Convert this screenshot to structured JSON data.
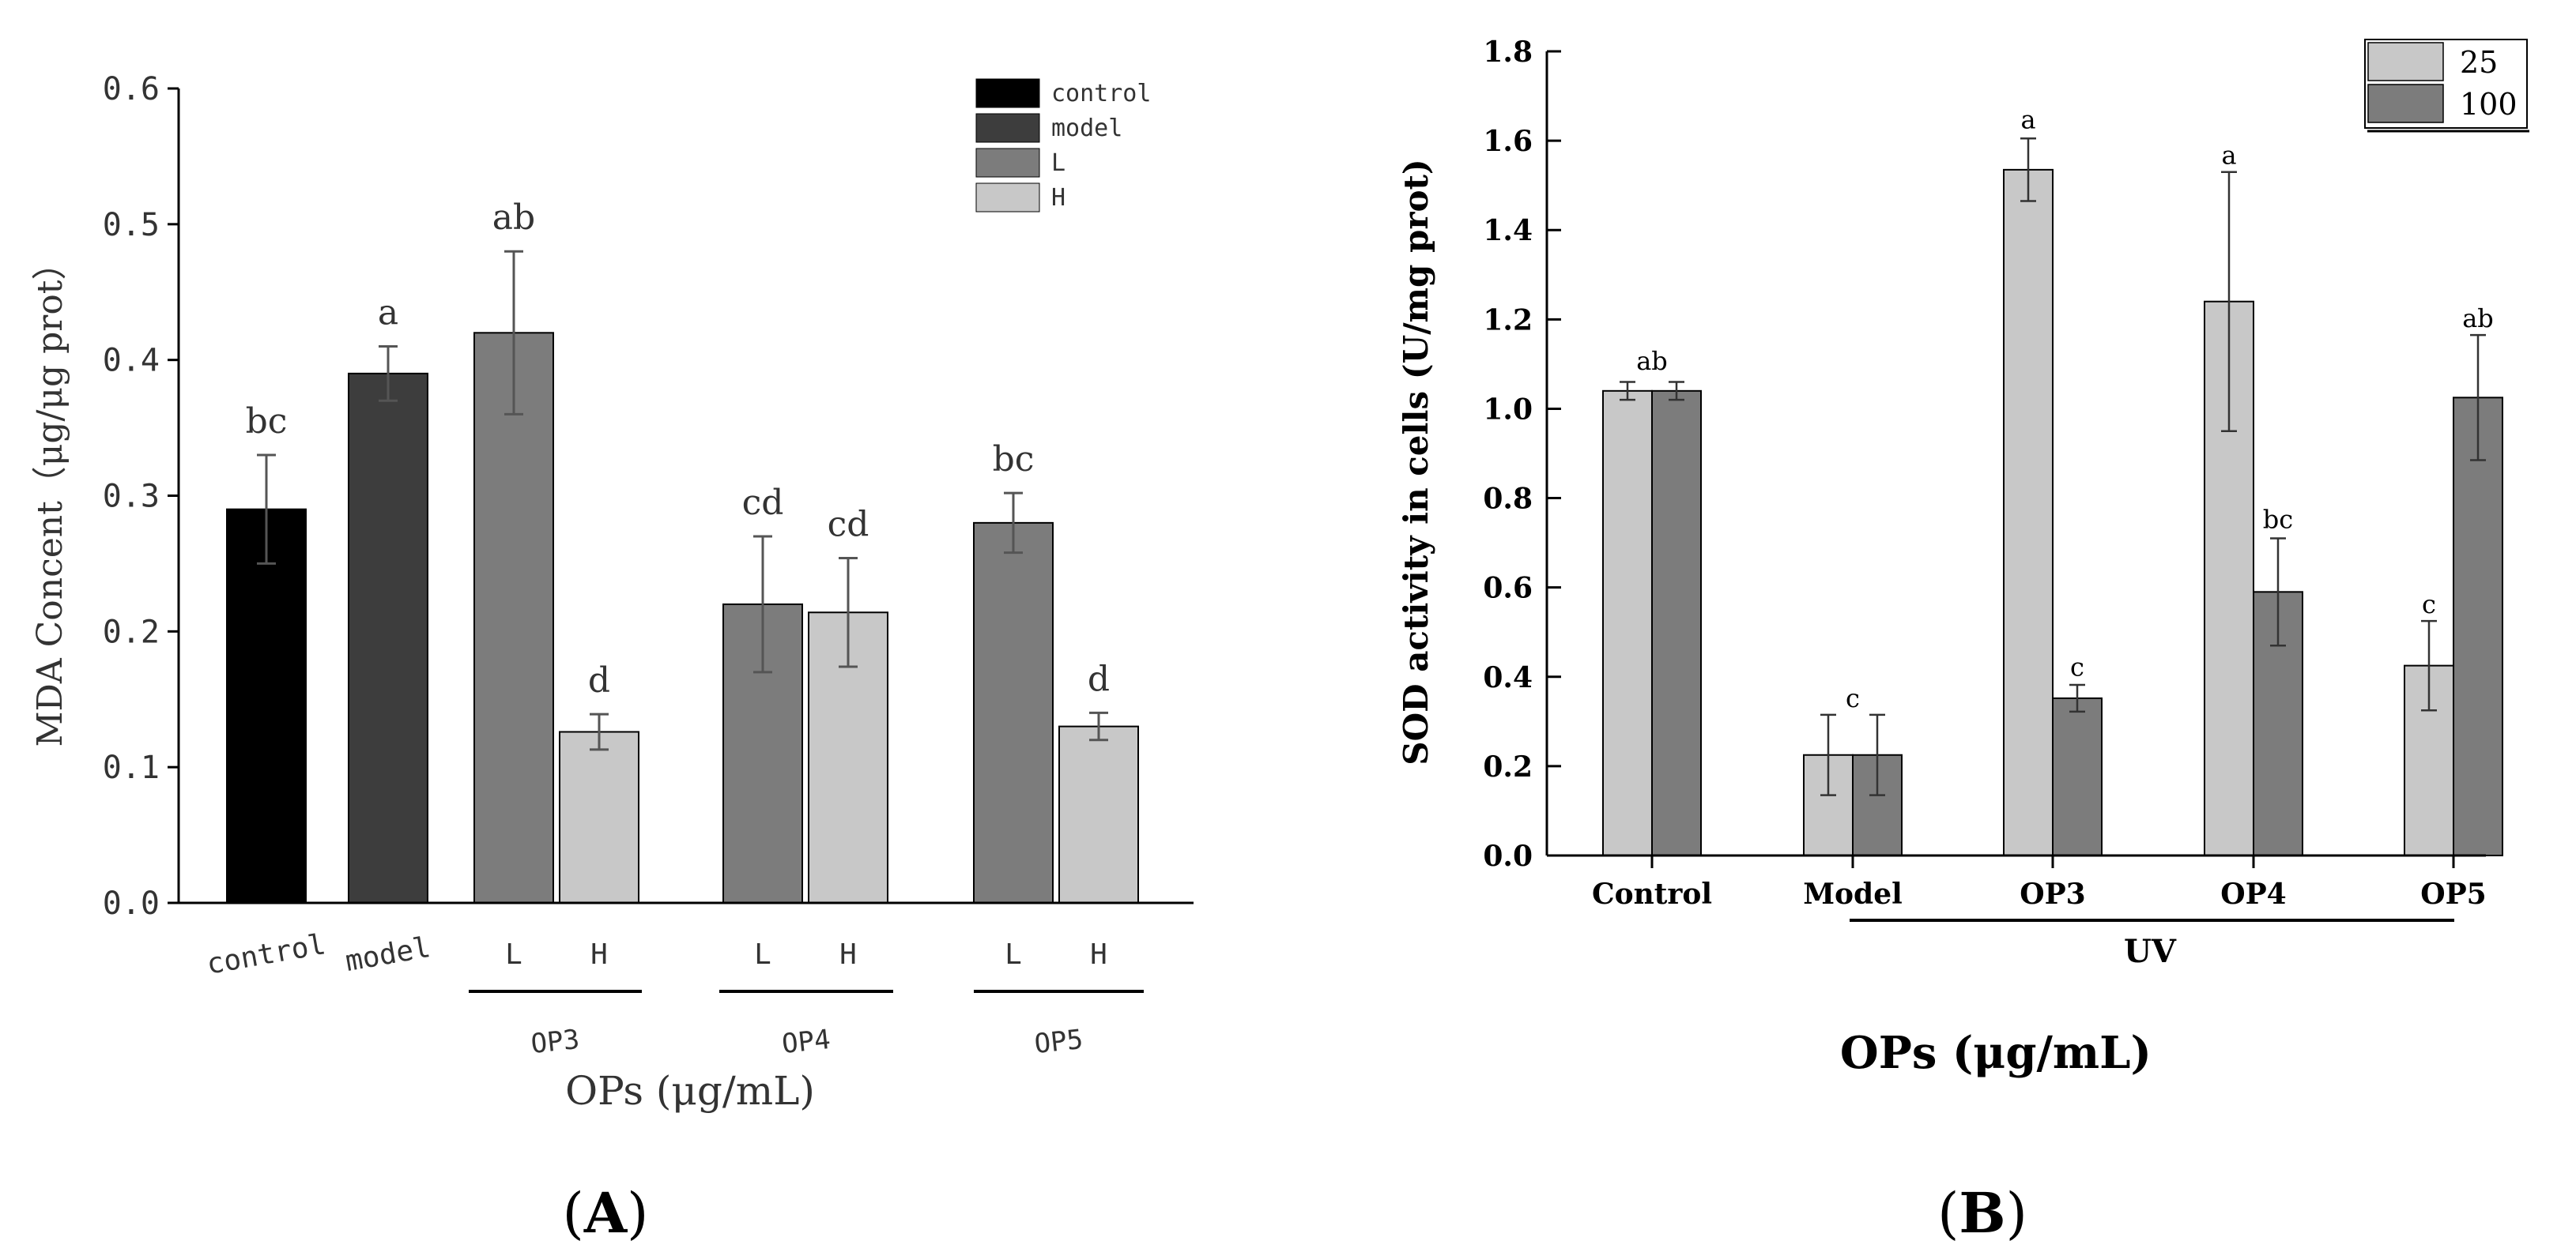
{
  "panel_labels": {
    "a": "A",
    "b": "B"
  },
  "chart_data": [
    {
      "type": "bar",
      "panel": "A",
      "title": "",
      "ylabel": "MDA Concent（μg/μg  prot）",
      "xlabel": "OPs (μg/mL)",
      "ylim": [
        0,
        0.6
      ],
      "yticks": [
        "0.0",
        "0.1",
        "0.2",
        "0.3",
        "0.4",
        "0.5",
        "0.6"
      ],
      "ytick_values": [
        0,
        0.1,
        0.2,
        0.3,
        0.4,
        0.5,
        0.6
      ],
      "groups": [
        "OP3",
        "OP4",
        "OP5"
      ],
      "legend": [
        {
          "label": "control",
          "color": "#000000"
        },
        {
          "label": "model",
          "color": "#3d3d3d"
        },
        {
          "label": "L",
          "color": "#7c7c7c"
        },
        {
          "label": "H",
          "color": "#c8c8c8"
        }
      ],
      "bars": [
        {
          "category": "control",
          "series": "control",
          "value": 0.29,
          "error": 0.04,
          "letter": "bc",
          "color": "#000000"
        },
        {
          "category": "model",
          "series": "model",
          "value": 0.39,
          "error": 0.02,
          "letter": "a",
          "color": "#3d3d3d"
        },
        {
          "category": "L",
          "group": "OP3",
          "series": "L",
          "value": 0.42,
          "error": 0.06,
          "letter": "ab",
          "color": "#7c7c7c"
        },
        {
          "category": "H",
          "group": "OP3",
          "series": "H",
          "value": 0.126,
          "error": 0.013,
          "letter": "d",
          "color": "#c8c8c8"
        },
        {
          "category": "L",
          "group": "OP4",
          "series": "L",
          "value": 0.22,
          "error": 0.05,
          "letter": "cd",
          "color": "#7c7c7c"
        },
        {
          "category": "H",
          "group": "OP4",
          "series": "H",
          "value": 0.214,
          "error": 0.04,
          "letter": "cd",
          "color": "#c8c8c8"
        },
        {
          "category": "L",
          "group": "OP5",
          "series": "L",
          "value": 0.28,
          "error": 0.022,
          "letter": "bc",
          "color": "#7c7c7c"
        },
        {
          "category": "H",
          "group": "OP5",
          "series": "H",
          "value": 0.13,
          "error": 0.01,
          "letter": "d",
          "color": "#c8c8c8"
        }
      ]
    },
    {
      "type": "bar",
      "panel": "B",
      "title": "",
      "ylabel": "SOD activity in cells (U/mg prot)",
      "xlabel": "OPs (μg/mL)",
      "group_label": "UV",
      "ylim": [
        0,
        1.8
      ],
      "yticks": [
        "0.0",
        "0.2",
        "0.4",
        "0.6",
        "0.8",
        "1.0",
        "1.2",
        "1.4",
        "1.6",
        "1.8"
      ],
      "ytick_values": [
        0,
        0.2,
        0.4,
        0.6,
        0.8,
        1.0,
        1.2,
        1.4,
        1.6,
        1.8
      ],
      "categories": [
        "Control",
        "Model",
        "OP3",
        "OP4",
        "OP5"
      ],
      "legend": [
        {
          "label": "25",
          "color": "#c8c8c8"
        },
        {
          "label": "100",
          "color": "#7c7c7c"
        }
      ],
      "series": [
        {
          "name": "25",
          "color": "#c8c8c8",
          "values": [
            1.04,
            0.225,
            1.535,
            1.24,
            0.425
          ],
          "errors": [
            0.02,
            0.09,
            0.07,
            0.29,
            0.1
          ]
        },
        {
          "name": "100",
          "color": "#7c7c7c",
          "values": [
            1.04,
            0.225,
            0.352,
            0.59,
            1.025
          ],
          "errors": [
            0.02,
            0.09,
            0.03,
            0.12,
            0.14
          ]
        }
      ],
      "letters": [
        {
          "category": "Control",
          "text": "ab",
          "value": 1.07
        },
        {
          "category": "Model",
          "text": "c",
          "value": 0.315
        },
        {
          "category": "OP3",
          "series": "25",
          "text": "a",
          "value": 1.61
        },
        {
          "category": "OP3",
          "series": "100",
          "text": "c",
          "value": 0.385
        },
        {
          "category": "OP4",
          "series": "25",
          "text": "a",
          "value": 1.53
        },
        {
          "category": "OP4",
          "series": "100",
          "text": "bc",
          "value": 0.715
        },
        {
          "category": "OP5",
          "series": "25",
          "text": "c",
          "value": 0.525
        },
        {
          "category": "OP5",
          "series": "100",
          "text": "ab",
          "value": 1.165
        }
      ]
    }
  ]
}
